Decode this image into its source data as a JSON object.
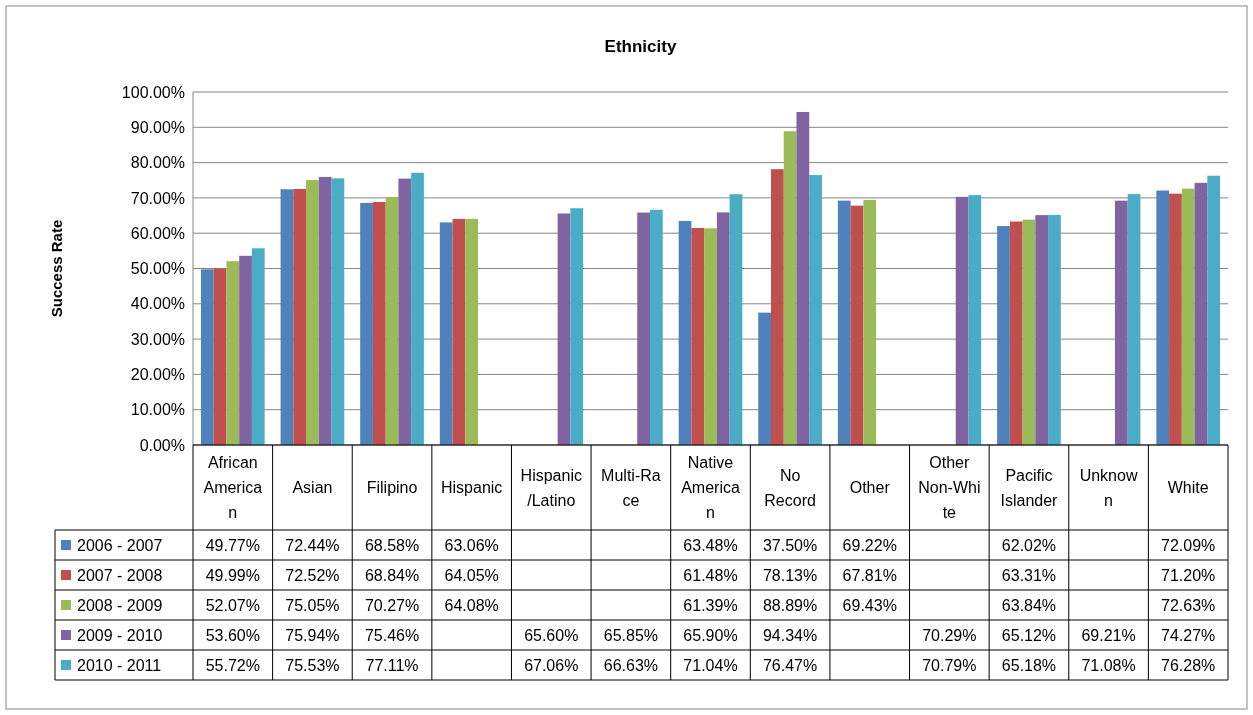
{
  "chart_data": {
    "type": "bar",
    "title": "Ethnicity",
    "ylabel": "Success Rate",
    "categories": [
      "African American",
      "Asian",
      "Filipino",
      "Hispanic",
      "Hispanic/Latino",
      "Multi-Race",
      "Native American",
      "No Record",
      "Other",
      "Other Non-White",
      "Pacific Islander",
      "Unknown",
      "White"
    ],
    "series": [
      {
        "name": "2006 - 2007",
        "color": "#4f81bd",
        "values": [
          49.77,
          72.44,
          68.58,
          63.06,
          null,
          null,
          63.48,
          37.5,
          69.22,
          null,
          62.02,
          null,
          72.09
        ],
        "value_labels": [
          "49.77%",
          "72.44%",
          "68.58%",
          "63.06%",
          null,
          null,
          "63.48%",
          "37.50%",
          "69.22%",
          null,
          "62.02%",
          null,
          "72.09%"
        ]
      },
      {
        "name": "2007 - 2008",
        "color": "#c0504d",
        "values": [
          49.99,
          72.52,
          68.84,
          64.05,
          null,
          null,
          61.48,
          78.13,
          67.81,
          null,
          63.31,
          null,
          71.2
        ],
        "value_labels": [
          "49.99%",
          "72.52%",
          "68.84%",
          "64.05%",
          null,
          null,
          "61.48%",
          "78.13%",
          "67.81%",
          null,
          "63.31%",
          null,
          "71.20%"
        ]
      },
      {
        "name": "2008 - 2009",
        "color": "#9bbb59",
        "values": [
          52.07,
          75.05,
          70.27,
          64.08,
          null,
          null,
          61.39,
          88.89,
          69.43,
          null,
          63.84,
          null,
          72.63
        ],
        "value_labels": [
          "52.07%",
          "75.05%",
          "70.27%",
          "64.08%",
          null,
          null,
          "61.39%",
          "88.89%",
          "69.43%",
          null,
          "63.84%",
          null,
          "72.63%"
        ]
      },
      {
        "name": "2009 - 2010",
        "color": "#8064a2",
        "values": [
          53.6,
          75.94,
          75.46,
          null,
          65.6,
          65.85,
          65.9,
          94.34,
          null,
          70.29,
          65.12,
          69.21,
          74.27
        ],
        "value_labels": [
          "53.60%",
          "75.94%",
          "75.46%",
          null,
          "65.60%",
          "65.85%",
          "65.90%",
          "94.34%",
          null,
          "70.29%",
          "65.12%",
          "69.21%",
          "74.27%"
        ]
      },
      {
        "name": "2010 - 2011",
        "color": "#4bacc6",
        "values": [
          55.72,
          75.53,
          77.11,
          null,
          67.06,
          66.63,
          71.04,
          76.47,
          null,
          70.79,
          65.18,
          71.08,
          76.28
        ],
        "value_labels": [
          "55.72%",
          "75.53%",
          "77.11%",
          null,
          "67.06%",
          "66.63%",
          "71.04%",
          "76.47%",
          null,
          "70.79%",
          "65.18%",
          "71.08%",
          "76.28%"
        ]
      }
    ],
    "ylim": [
      0,
      100
    ],
    "yticks": [
      {
        "value": 0,
        "label": "0.00%"
      },
      {
        "value": 10,
        "label": "10.00%"
      },
      {
        "value": 20,
        "label": "20.00%"
      },
      {
        "value": 30,
        "label": "30.00%"
      },
      {
        "value": 40,
        "label": "40.00%"
      },
      {
        "value": 50,
        "label": "50.00%"
      },
      {
        "value": 60,
        "label": "60.00%"
      },
      {
        "value": 70,
        "label": "70.00%"
      },
      {
        "value": 80,
        "label": "80.00%"
      },
      {
        "value": 90,
        "label": "90.00%"
      },
      {
        "value": 100,
        "label": "100.00%"
      }
    ],
    "grid": "y",
    "legend": "bottom left"
  }
}
